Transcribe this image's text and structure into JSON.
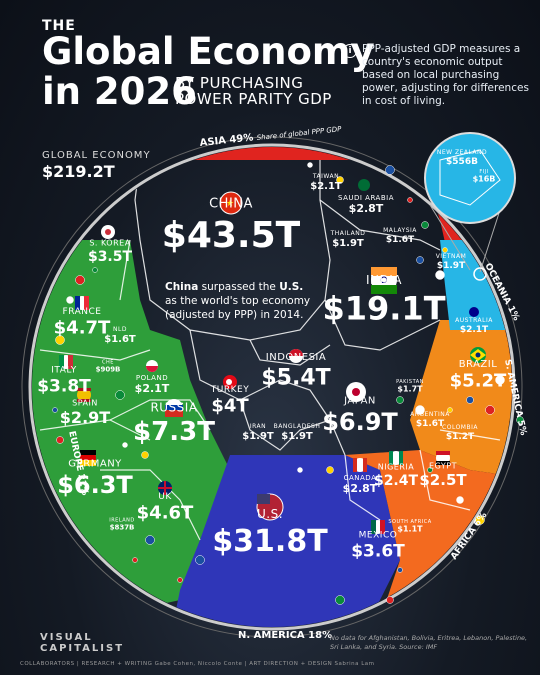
{
  "header": {
    "the": "THE",
    "title_line1": "Global Economy",
    "title_line2": "in 2026",
    "subtitle": "BY PURCHASING POWER PARITY GDP",
    "info": "PPP-adjusted GDP measures a country's economic output based on local purchasing power, adjusting for differences in cost of living."
  },
  "global": {
    "label": "GLOBAL ECONOMY",
    "value": "$219.2T"
  },
  "callout": {
    "line1_bold": "China",
    "line1_rest": " surpassed the ",
    "line1_bold2": "U.S.",
    "line2": "as the world's top economy",
    "line3": "(adjusted by PPP) in 2014."
  },
  "footer": {
    "brand_line1": "VISUAL",
    "brand_line2": "CAPITALIST",
    "note": "No data for Afghanistan, Bolivia, Eritrea, Lebanon, Palestine, Sri Lanka, and Syria. Source: IMF",
    "credits": "COLLABORATORS  |  RESEARCH + WRITING Gabe Cohen, Niccolo Conte  |  ART DIRECTION + DESIGN Sabrina Lam"
  },
  "colors": {
    "asia": "#e0241f",
    "europe": "#2e9e3a",
    "n_america": "#2f36b8",
    "s_america": "#f18a1a",
    "africa": "#f36a1f",
    "oceania": "#27b6e6"
  },
  "chart_data": {
    "type": "voronoi-treemap",
    "total": "$219.2T",
    "regions": [
      {
        "name": "ASIA",
        "share": "49%",
        "note": "Share of global PPP GDP"
      },
      {
        "name": "EUROPE",
        "share": "21%"
      },
      {
        "name": "N. AMERICA",
        "share": "18%"
      },
      {
        "name": "S. AMERICA",
        "share": "5%"
      },
      {
        "name": "AFRICA",
        "share": "6%"
      },
      {
        "name": "OCEANIA",
        "share": "1%"
      }
    ],
    "countries": [
      {
        "name": "CHINA",
        "value": 43.5,
        "label": "$43.5T",
        "region": "Asia"
      },
      {
        "name": "U.S.",
        "value": 31.8,
        "label": "$31.8T",
        "region": "N. America"
      },
      {
        "name": "INDIA",
        "value": 19.1,
        "label": "$19.1T",
        "region": "Asia"
      },
      {
        "name": "RUSSIA",
        "value": 7.3,
        "label": "$7.3T",
        "region": "Europe"
      },
      {
        "name": "JAPAN",
        "value": 6.9,
        "label": "$6.9T",
        "region": "Asia"
      },
      {
        "name": "GERMANY",
        "value": 6.3,
        "label": "$6.3T",
        "region": "Europe"
      },
      {
        "name": "INDONESIA",
        "value": 5.4,
        "label": "$5.4T",
        "region": "Asia"
      },
      {
        "name": "BRAZIL",
        "value": 5.2,
        "label": "$5.2T",
        "region": "S. America"
      },
      {
        "name": "FRANCE",
        "value": 4.7,
        "label": "$4.7T",
        "region": "Europe"
      },
      {
        "name": "UK",
        "value": 4.6,
        "label": "$4.6T",
        "region": "Europe"
      },
      {
        "name": "TURKEY",
        "value": 4.0,
        "label": "$4T",
        "region": "Asia"
      },
      {
        "name": "ITALY",
        "value": 3.8,
        "label": "$3.8T",
        "region": "Europe"
      },
      {
        "name": "MEXICO",
        "value": 3.6,
        "label": "$3.6T",
        "region": "N. America"
      },
      {
        "name": "S. KOREA",
        "value": 3.5,
        "label": "$3.5T",
        "region": "Asia"
      },
      {
        "name": "SPAIN",
        "value": 2.9,
        "label": "$2.9T",
        "region": "Europe"
      },
      {
        "name": "CANADA",
        "value": 2.8,
        "label": "$2.8T",
        "region": "N. America"
      },
      {
        "name": "SAUDI ARABIA",
        "value": 2.8,
        "label": "$2.8T",
        "region": "Asia"
      },
      {
        "name": "EGYPT",
        "value": 2.5,
        "label": "$2.5T",
        "region": "Africa"
      },
      {
        "name": "NIGERIA",
        "value": 2.4,
        "label": "$2.4T",
        "region": "Africa"
      },
      {
        "name": "TAIWAN",
        "value": 2.1,
        "label": "$2.1T",
        "region": "Asia"
      },
      {
        "name": "POLAND",
        "value": 2.1,
        "label": "$2.1T",
        "region": "Europe"
      },
      {
        "name": "AUSTRALIA",
        "value": 2.1,
        "label": "$2.1T",
        "region": "Oceania"
      },
      {
        "name": "THAILAND",
        "value": 1.9,
        "label": "$1.9T",
        "region": "Asia"
      },
      {
        "name": "IRAN",
        "value": 1.9,
        "label": "$1.9T",
        "region": "Asia"
      },
      {
        "name": "BANGLADESH",
        "value": 1.9,
        "label": "$1.9T",
        "region": "Asia"
      },
      {
        "name": "VIETNAM",
        "value": 1.9,
        "label": "$1.9T",
        "region": "Asia"
      },
      {
        "name": "PAKISTAN",
        "value": 1.7,
        "label": "$1.7T",
        "region": "Asia"
      },
      {
        "name": "ARGENTINA",
        "value": 1.6,
        "label": "$1.6T",
        "region": "S. America"
      },
      {
        "name": "MALAYSIA",
        "value": 1.6,
        "label": "$1.6T",
        "region": "Asia"
      },
      {
        "name": "NLD",
        "value": 1.6,
        "label": "$1.6T",
        "region": "Europe"
      },
      {
        "name": "COLOMBIA",
        "value": 1.2,
        "label": "$1.2T",
        "region": "S. America"
      },
      {
        "name": "SOUTH AFRICA",
        "value": 1.1,
        "label": "$1.1T",
        "region": "Africa"
      },
      {
        "name": "CHE",
        "value": 0.909,
        "label": "$909B",
        "region": "Europe"
      },
      {
        "name": "IRELAND",
        "value": 0.837,
        "label": "$837B",
        "region": "Europe"
      },
      {
        "name": "NEW ZEALAND",
        "value": 0.556,
        "label": "$556B",
        "region": "Oceania"
      },
      {
        "name": "FIJI",
        "value": 0.016,
        "label": "$16B",
        "region": "Oceania"
      }
    ]
  }
}
